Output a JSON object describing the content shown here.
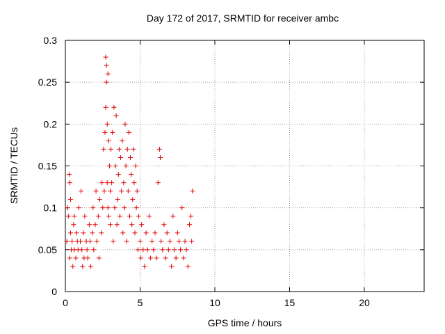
{
  "chart_data": {
    "type": "scatter",
    "title": "Day 172 of 2017, SRMTID for receiver ambc",
    "xlabel": "GPS time / hours",
    "ylabel": "SRMTID / TECUs",
    "xlim": [
      0,
      24
    ],
    "ylim": [
      0,
      0.3
    ],
    "x_ticks": [
      0,
      5,
      10,
      15,
      20
    ],
    "y_ticks": [
      0,
      0.05,
      0.1,
      0.15,
      0.2,
      0.25,
      0.3
    ],
    "grid": true,
    "legend": "none",
    "marker": "plus",
    "color": "#e00000",
    "series": [
      {
        "x": [
          0.1,
          0.15,
          0.2,
          0.25,
          0.3,
          0.3,
          0.35,
          0.35,
          0.4,
          0.45,
          0.5,
          0.55,
          0.6,
          0.6,
          0.7,
          0.75,
          0.8,
          0.85,
          0.9,
          1.0,
          1.05,
          1.1,
          1.15,
          1.2,
          1.25,
          1.3,
          1.4,
          1.45,
          1.5,
          1.6,
          1.65,
          1.7,
          1.8,
          1.85,
          1.9,
          2.0,
          2.05,
          2.1,
          2.2,
          2.25,
          2.3,
          2.4,
          2.45,
          2.5,
          2.55,
          2.6,
          2.65,
          2.7,
          2.7,
          2.75,
          2.75,
          2.8,
          2.8,
          2.85,
          2.85,
          2.9,
          2.9,
          2.95,
          3.0,
          3.0,
          3.05,
          3.1,
          3.15,
          3.2,
          3.25,
          3.3,
          3.35,
          3.4,
          3.45,
          3.5,
          3.55,
          3.6,
          3.65,
          3.7,
          3.75,
          3.8,
          3.85,
          3.9,
          3.95,
          4.0,
          4.05,
          4.1,
          4.15,
          4.2,
          4.25,
          4.3,
          4.35,
          4.4,
          4.45,
          4.5,
          4.55,
          4.6,
          4.65,
          4.7,
          4.75,
          4.8,
          4.85,
          4.9,
          5.0,
          5.05,
          5.1,
          5.2,
          5.3,
          5.4,
          5.5,
          5.6,
          5.7,
          5.8,
          5.9,
          6.0,
          6.1,
          6.2,
          6.3,
          6.35,
          6.4,
          6.5,
          6.6,
          6.7,
          6.8,
          6.9,
          7.0,
          7.1,
          7.2,
          7.3,
          7.4,
          7.5,
          7.6,
          7.7,
          7.8,
          7.9,
          8.0,
          8.1,
          8.2,
          8.3,
          8.4,
          8.45,
          8.5
        ],
        "y": [
          0.06,
          0.1,
          0.09,
          0.14,
          0.13,
          0.04,
          0.07,
          0.11,
          0.05,
          0.06,
          0.03,
          0.08,
          0.05,
          0.09,
          0.04,
          0.07,
          0.06,
          0.05,
          0.1,
          0.06,
          0.12,
          0.05,
          0.03,
          0.07,
          0.04,
          0.09,
          0.06,
          0.05,
          0.04,
          0.08,
          0.06,
          0.03,
          0.07,
          0.1,
          0.05,
          0.08,
          0.12,
          0.06,
          0.09,
          0.04,
          0.11,
          0.07,
          0.13,
          0.1,
          0.17,
          0.12,
          0.19,
          0.28,
          0.22,
          0.25,
          0.27,
          0.13,
          0.2,
          0.26,
          0.1,
          0.18,
          0.09,
          0.15,
          0.12,
          0.08,
          0.17,
          0.13,
          0.19,
          0.06,
          0.22,
          0.1,
          0.15,
          0.21,
          0.08,
          0.11,
          0.14,
          0.17,
          0.09,
          0.16,
          0.12,
          0.18,
          0.07,
          0.13,
          0.1,
          0.2,
          0.15,
          0.06,
          0.17,
          0.12,
          0.19,
          0.09,
          0.16,
          0.14,
          0.08,
          0.11,
          0.17,
          0.13,
          0.07,
          0.15,
          0.1,
          0.12,
          0.05,
          0.09,
          0.06,
          0.04,
          0.08,
          0.05,
          0.03,
          0.07,
          0.05,
          0.09,
          0.04,
          0.06,
          0.05,
          0.07,
          0.04,
          0.13,
          0.17,
          0.16,
          0.06,
          0.05,
          0.08,
          0.04,
          0.07,
          0.05,
          0.06,
          0.03,
          0.09,
          0.05,
          0.04,
          0.07,
          0.06,
          0.05,
          0.1,
          0.04,
          0.06,
          0.05,
          0.03,
          0.08,
          0.09,
          0.06,
          0.12
        ]
      }
    ]
  }
}
